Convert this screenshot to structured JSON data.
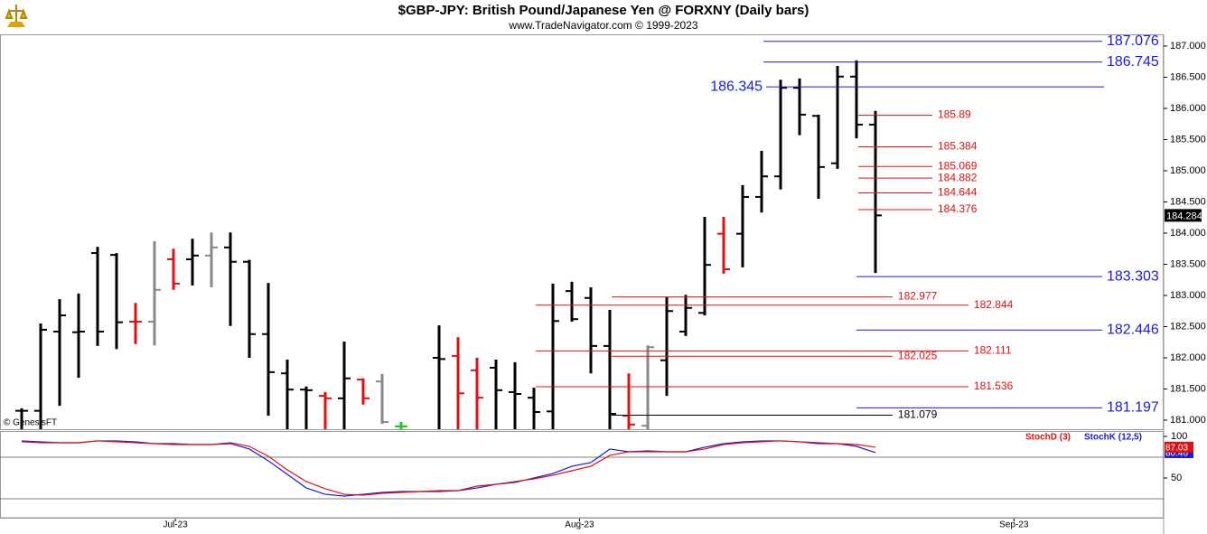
{
  "chart_data": [
    {
      "type": "ohlc",
      "title": "$GBP-JPY:  British Pound/Japanese Yen @ FORXNY  (Daily bars)",
      "subtitle": "www.TradeNavigator.com © 1999-2023",
      "watermark": "© GenesisFT",
      "x": [
        0,
        1,
        2,
        3,
        4,
        5,
        6,
        7,
        8,
        9,
        10,
        11,
        12,
        13,
        14,
        15,
        16,
        17,
        18,
        19,
        20,
        22,
        23,
        24,
        25,
        26,
        27,
        28,
        29,
        30,
        31,
        32,
        33,
        34,
        35,
        36,
        37,
        38,
        39,
        40,
        41,
        42,
        43,
        44,
        45
      ],
      "open": [
        181.15,
        181.15,
        182.42,
        182.41,
        183.68,
        183.65,
        182.58,
        182.58,
        183.58,
        183.58,
        183.64,
        183.77,
        183.54,
        182.38,
        181.75,
        181.49,
        181.39,
        181.35,
        181.65,
        181.62,
        180.9,
        182.0,
        182.03,
        181.8,
        181.84,
        181.45,
        181.36,
        181.14,
        183.07,
        182.96,
        182.19,
        181.07,
        180.91,
        181.96,
        182.42,
        182.72,
        183.99,
        183.99,
        184.58,
        184.91,
        186.33,
        185.88,
        185.12,
        186.51,
        185.74
      ],
      "high": [
        181.19,
        182.55,
        182.94,
        183.03,
        183.78,
        183.68,
        182.88,
        183.87,
        183.75,
        183.91,
        184.01,
        184.01,
        183.57,
        183.2,
        181.97,
        181.54,
        181.45,
        182.26,
        181.67,
        181.74,
        180.97,
        182.52,
        182.33,
        182.0,
        181.97,
        181.93,
        181.52,
        183.19,
        183.22,
        183.13,
        182.77,
        181.75,
        182.2,
        182.97,
        183.01,
        184.26,
        184.26,
        184.77,
        185.32,
        186.46,
        186.48,
        185.9,
        186.68,
        186.77,
        185.96
      ],
      "low": [
        180.6,
        180.6,
        181.23,
        181.68,
        182.19,
        182.14,
        182.22,
        182.2,
        183.09,
        183.16,
        183.13,
        182.51,
        182.0,
        181.07,
        180.7,
        180.7,
        180.7,
        180.7,
        181.25,
        180.94,
        180.85,
        180.7,
        180.7,
        180.7,
        180.7,
        180.7,
        180.7,
        180.7,
        182.58,
        181.75,
        180.7,
        180.7,
        180.7,
        181.39,
        182.35,
        182.68,
        183.35,
        183.45,
        184.33,
        184.7,
        185.57,
        184.55,
        185.03,
        185.52,
        183.36
      ],
      "close": [
        181.15,
        182.45,
        182.68,
        182.42,
        182.42,
        182.57,
        182.58,
        183.09,
        183.19,
        183.64,
        183.77,
        183.54,
        182.38,
        181.77,
        181.49,
        181.48,
        181.35,
        181.67,
        181.35,
        180.97,
        180.9,
        181.98,
        181.43,
        181.36,
        181.48,
        181.42,
        181.13,
        182.59,
        182.62,
        182.19,
        181.1,
        180.93,
        182.17,
        182.75,
        182.8,
        183.49,
        183.42,
        184.58,
        184.91,
        186.33,
        185.9,
        185.06,
        186.51,
        185.74,
        184.284
      ],
      "colors": [
        "#000",
        "#000",
        "#000",
        "#000",
        "#000",
        "#000",
        "#e01010",
        "#888",
        "#e01010",
        "#000",
        "#888",
        "#000",
        "#000",
        "#000",
        "#000",
        "#000",
        "#e01010",
        "#000",
        "#e01010",
        "#888",
        "#1ec81e",
        "#000",
        "#e01010",
        "#e01010",
        "#000",
        "#000",
        "#000",
        "#000",
        "#000",
        "#000",
        "#000",
        "#e01010",
        "#888",
        "#000",
        "#000",
        "#000",
        "#e01010",
        "#000",
        "#000",
        "#000",
        "#000",
        "#000",
        "#000",
        "#000",
        "#000"
      ],
      "xlim": [
        -1.143,
        60.19
      ],
      "ylim": [
        180.855,
        187.188
      ],
      "yticks": [
        {
          "value": 181,
          "label": "181.000"
        },
        {
          "value": 181.5,
          "label": "181.500"
        },
        {
          "value": 182,
          "label": "182.000"
        },
        {
          "value": 182.5,
          "label": "182.500"
        },
        {
          "value": 183,
          "label": "183.000"
        },
        {
          "value": 183.5,
          "label": "183.500"
        },
        {
          "value": 184,
          "label": "184.000"
        },
        {
          "value": 184.5,
          "label": "184.500"
        },
        {
          "value": 185,
          "label": "185.000"
        },
        {
          "value": 185.5,
          "label": "185.500"
        },
        {
          "value": 186,
          "label": "186.000"
        },
        {
          "value": 186.5,
          "label": "186.500"
        },
        {
          "value": 187,
          "label": "187.000"
        }
      ],
      "last_price": 184.284,
      "levels": [
        {
          "value": 187.076,
          "color": "#1a1adb",
          "xrange": [
            39.1,
            56.95
          ]
        },
        {
          "value": 186.745,
          "color": "#1a1adb",
          "xrange": [
            39.1,
            56.95
          ]
        },
        {
          "value": 186.345,
          "color": "#1a1adb",
          "xrange": [
            39.24,
            57.05
          ],
          "label_side": "left"
        },
        {
          "value": 185.89,
          "color": "#e01010",
          "xrange": [
            44.1,
            48.0
          ]
        },
        {
          "value": 185.384,
          "color": "#e01010",
          "xrange": [
            44.1,
            48.0
          ]
        },
        {
          "value": 185.069,
          "color": "#e01010",
          "xrange": [
            44.1,
            48.0
          ]
        },
        {
          "value": 184.882,
          "color": "#e01010",
          "xrange": [
            44.1,
            48.0
          ]
        },
        {
          "value": 184.644,
          "color": "#e01010",
          "xrange": [
            44.1,
            48.0
          ]
        },
        {
          "value": 184.376,
          "color": "#e01010",
          "xrange": [
            44.1,
            48.0
          ]
        },
        {
          "value": 183.303,
          "color": "#1a1adb",
          "xrange": [
            44.0,
            56.95
          ]
        },
        {
          "value": 182.977,
          "color": "#e01010",
          "xrange": [
            31.1,
            45.9
          ]
        },
        {
          "value": 182.844,
          "color": "#e01010",
          "xrange": [
            27.1,
            49.9
          ]
        },
        {
          "value": 182.446,
          "color": "#1a1adb",
          "xrange": [
            44.0,
            56.95
          ]
        },
        {
          "value": 182.111,
          "color": "#e01010",
          "xrange": [
            27.1,
            49.9
          ]
        },
        {
          "value": 182.025,
          "color": "#e01010",
          "xrange": [
            31.1,
            45.9
          ]
        },
        {
          "value": 181.536,
          "color": "#e01010",
          "xrange": [
            27.1,
            49.9
          ]
        },
        {
          "value": 181.197,
          "color": "#1a1adb",
          "xrange": [
            44.0,
            56.95
          ]
        },
        {
          "value": 181.079,
          "color": "#000000",
          "xrange": [
            31.1,
            45.9
          ]
        }
      ]
    },
    {
      "type": "line",
      "x": [
        0,
        1,
        2,
        3,
        4,
        5,
        6,
        7,
        8,
        9,
        10,
        11,
        12,
        13,
        14,
        15,
        16,
        17,
        18,
        19,
        20,
        22,
        23,
        24,
        25,
        26,
        27,
        28,
        29,
        30,
        31,
        32,
        33,
        34,
        35,
        36,
        37,
        38,
        39,
        40,
        41,
        42,
        43,
        44,
        45
      ],
      "series": [
        {
          "name": "StochD (3)",
          "color": "#e01010",
          "values": [
            93.5,
            92.4,
            92.4,
            92.4,
            94.6,
            93.5,
            92.4,
            91.3,
            90.2,
            90.2,
            90.2,
            92.4,
            88.0,
            76.1,
            59.8,
            45.7,
            37.0,
            30.4,
            29.3,
            31.5,
            32.6,
            34.8,
            34.8,
            40.2,
            42.4,
            45.7,
            48.9,
            53.3,
            58.7,
            64.1,
            77.2,
            81.5,
            81.5,
            81.5,
            81.5,
            84.8,
            90.2,
            92.4,
            93.5,
            94.6,
            93.5,
            92.4,
            91.3,
            90.2,
            87.03
          ]
        },
        {
          "name": "StochK (12,5)",
          "color": "#1a1adb",
          "values": [
            94.6,
            93.5,
            92.4,
            92.4,
            94.6,
            94.6,
            93.5,
            91.3,
            91.3,
            90.2,
            90.2,
            91.3,
            84.8,
            70.7,
            54.3,
            38.0,
            30.4,
            28.3,
            30.4,
            32.6,
            33.7,
            33.7,
            34.8,
            38.0,
            42.4,
            44.6,
            50.0,
            55.4,
            64.1,
            68.5,
            84.8,
            81.5,
            82.6,
            81.5,
            81.5,
            87.0,
            91.3,
            93.5,
            94.6,
            94.6,
            93.5,
            91.3,
            91.3,
            88.0,
            80.46
          ]
        }
      ],
      "xlim": [
        -1.143,
        60.19
      ],
      "xticks": [
        {
          "value": 8.1,
          "label": "Jul-23"
        },
        {
          "value": 29.4,
          "label": "Aug-23"
        },
        {
          "value": 52.3,
          "label": "Sep-23"
        }
      ],
      "ylim": [
        2.2,
        105.4
      ],
      "yticks": [
        100,
        50
      ],
      "hlines": [
        75,
        25
      ]
    }
  ]
}
